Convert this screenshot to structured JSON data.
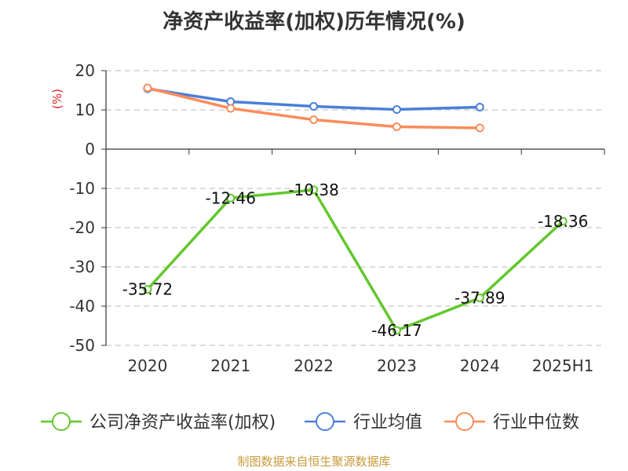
{
  "chart_data": {
    "type": "line",
    "title": "净资产收益率(加权)历年情况(%)",
    "y_unit": "(%)",
    "categories": [
      "2020",
      "2021",
      "2022",
      "2023",
      "2024",
      "2025H1"
    ],
    "ylim": [
      -50,
      20
    ],
    "yticks": [
      20,
      10,
      0,
      -10,
      -20,
      -30,
      -40,
      -50
    ],
    "grid": true,
    "legend_position": "bottom",
    "series": [
      {
        "name": "公司净资产收益率(加权)",
        "color": "#63c72e",
        "values": [
          -35.72,
          -12.46,
          -10.38,
          -46.17,
          -37.89,
          -18.36
        ],
        "labels": [
          "-35.72",
          "-12.46",
          "-10.38",
          "-46.17",
          "-37.89",
          "-18.36"
        ]
      },
      {
        "name": "行业均值",
        "color": "#4a7fd9",
        "values": [
          15.4,
          12.1,
          10.9,
          10.1,
          10.7,
          null
        ]
      },
      {
        "name": "行业中位数",
        "color": "#fb8c5a",
        "values": [
          15.6,
          10.4,
          7.5,
          5.7,
          5.4,
          null
        ]
      }
    ],
    "source": "制图数据来自恒生聚源数据库"
  }
}
